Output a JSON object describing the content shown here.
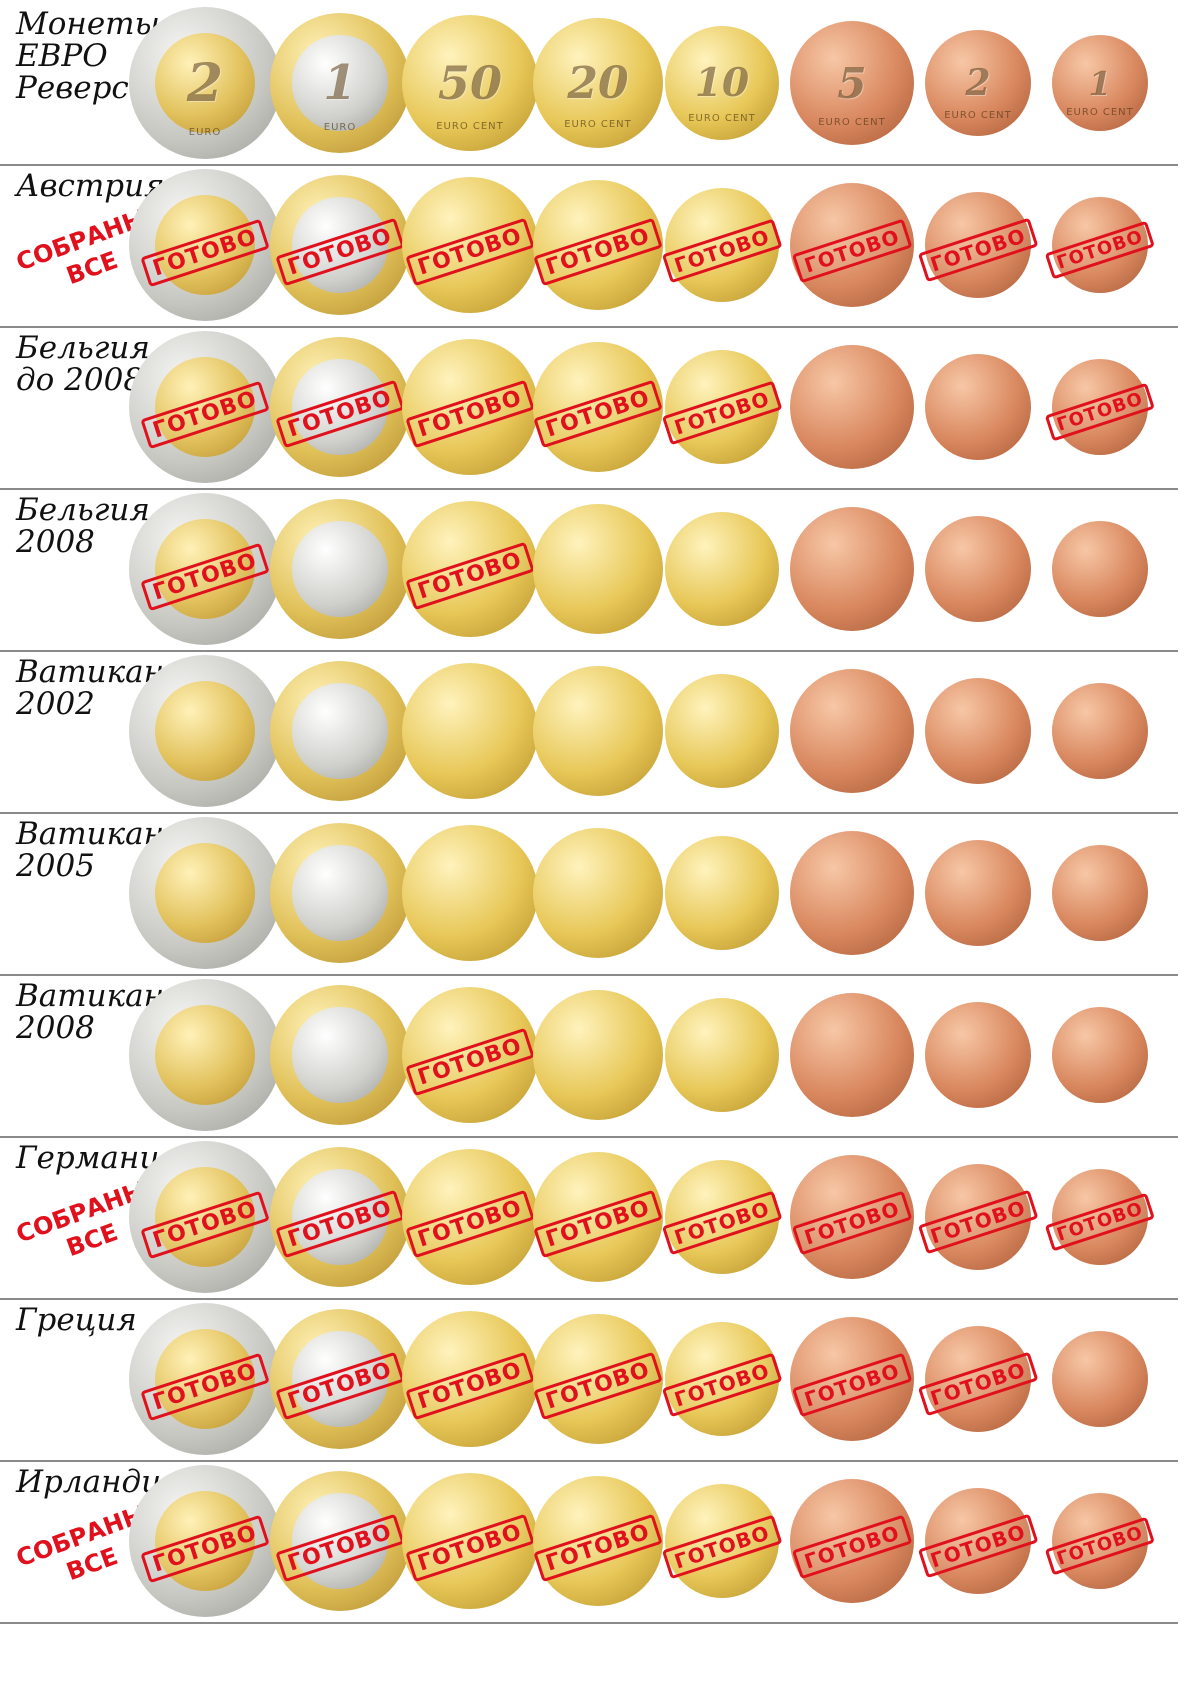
{
  "stamp_text": "ГОТОВО",
  "collected_text": "СОБРАНЫ\nВСЕ",
  "denominations": [
    {
      "id": "2-euro",
      "metal": "bimetal-gold",
      "glyph": "2",
      "legend": "EURO"
    },
    {
      "id": "1-euro",
      "metal": "bimetal-silver",
      "glyph": "1",
      "legend": "EURO"
    },
    {
      "id": "50-cent",
      "metal": "gold",
      "glyph": "50",
      "legend": "EURO CENT"
    },
    {
      "id": "20-cent",
      "metal": "gold",
      "glyph": "20",
      "legend": "EURO CENT"
    },
    {
      "id": "10-cent",
      "metal": "gold",
      "glyph": "10",
      "legend": "EURO CENT"
    },
    {
      "id": "5-cent",
      "metal": "copper",
      "glyph": "5",
      "legend": "EURO CENT"
    },
    {
      "id": "2-cent",
      "metal": "copper",
      "glyph": "2",
      "legend": "EURO CENT"
    },
    {
      "id": "1-cent",
      "metal": "copper",
      "glyph": "1",
      "legend": "EURO CENT"
    }
  ],
  "rows": [
    {
      "id": "euro-reverse",
      "label": "Монеты\nЕВРО\n  Реверс",
      "collected_all": false,
      "show_glyph": true,
      "done": [
        false,
        false,
        false,
        false,
        false,
        false,
        false,
        false
      ]
    },
    {
      "id": "austria",
      "label": "Австрия",
      "collected_all": true,
      "show_glyph": false,
      "done": [
        true,
        true,
        true,
        true,
        true,
        true,
        true,
        true
      ]
    },
    {
      "id": "belgium-pre-2008",
      "label": "Бельгия\nдо 2008",
      "collected_all": false,
      "show_glyph": false,
      "done": [
        true,
        true,
        true,
        true,
        true,
        false,
        false,
        true
      ]
    },
    {
      "id": "belgium-2008",
      "label": "Бельгия\n2008",
      "collected_all": false,
      "show_glyph": false,
      "done": [
        true,
        false,
        true,
        false,
        false,
        false,
        false,
        false
      ]
    },
    {
      "id": "vatican-2002",
      "label": "Ватикан\n2002",
      "collected_all": false,
      "show_glyph": false,
      "done": [
        false,
        false,
        false,
        false,
        false,
        false,
        false,
        false
      ]
    },
    {
      "id": "vatican-2005",
      "label": "Ватикан\n2005",
      "collected_all": false,
      "show_glyph": false,
      "done": [
        false,
        false,
        false,
        false,
        false,
        false,
        false,
        false
      ]
    },
    {
      "id": "vatican-2008",
      "label": "Ватикан\n2008",
      "collected_all": false,
      "show_glyph": false,
      "done": [
        false,
        false,
        true,
        false,
        false,
        false,
        false,
        false
      ]
    },
    {
      "id": "germany",
      "label": "Германия",
      "collected_all": true,
      "show_glyph": false,
      "done": [
        true,
        true,
        true,
        true,
        true,
        true,
        true,
        true
      ]
    },
    {
      "id": "greece",
      "label": "Греция",
      "collected_all": false,
      "show_glyph": false,
      "done": [
        true,
        true,
        true,
        true,
        true,
        true,
        true,
        false
      ]
    },
    {
      "id": "ireland",
      "label": "Ирландия",
      "collected_all": true,
      "show_glyph": false,
      "done": [
        true,
        true,
        true,
        true,
        true,
        true,
        true,
        true
      ]
    }
  ]
}
